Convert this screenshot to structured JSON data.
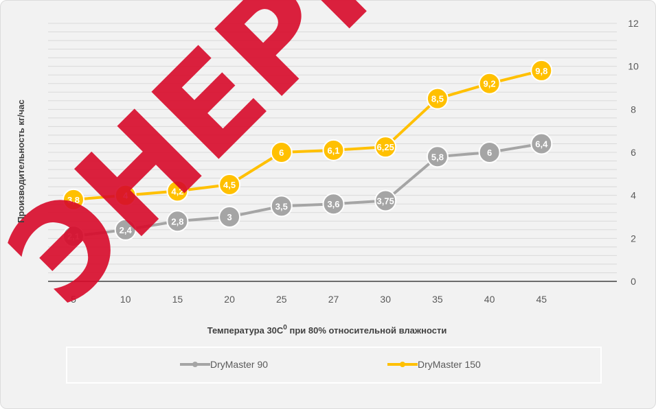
{
  "chart_data": {
    "type": "line",
    "categories": [
      "5",
      "10",
      "15",
      "20",
      "25",
      "27",
      "30",
      "35",
      "40",
      "45"
    ],
    "series": [
      {
        "name": "DryMaster 90",
        "color": "#a5a5a5",
        "values": [
          2.1,
          2.4,
          2.8,
          3,
          3.5,
          3.6,
          3.75,
          5.8,
          6,
          6.4
        ],
        "labels": [
          "2,1",
          "2,4",
          "2,8",
          "3",
          "3,5",
          "3,6",
          "3,75",
          "5,8",
          "6",
          "6,4"
        ]
      },
      {
        "name": "DryMaster 150",
        "color": "#ffc000",
        "values": [
          3.8,
          4,
          4.2,
          4.5,
          6,
          6.1,
          6.25,
          8.5,
          9.2,
          9.8
        ],
        "labels": [
          "3,8",
          "4",
          "4,2",
          "4,5",
          "6",
          "6,1",
          "6,25",
          "8,5",
          "9,2",
          "9,8"
        ]
      }
    ],
    "y_ticks": [
      "0",
      "2",
      "4",
      "6",
      "8",
      "10",
      "12"
    ],
    "ylim": [
      0,
      12
    ],
    "y_axis_side": "right",
    "ylabel": "Производительность кг/час",
    "xlabel": "Температура 30С",
    "xlabel_superscript": "0",
    "xlabel_suffix": " при 80% относительной влажности",
    "legend_position": "bottom",
    "grid": true
  },
  "watermark": "ЭНЕРГ",
  "colors": {
    "background": "#f2f2f2",
    "grid": "#d9d9d9",
    "watermark": "#d80a2a"
  }
}
